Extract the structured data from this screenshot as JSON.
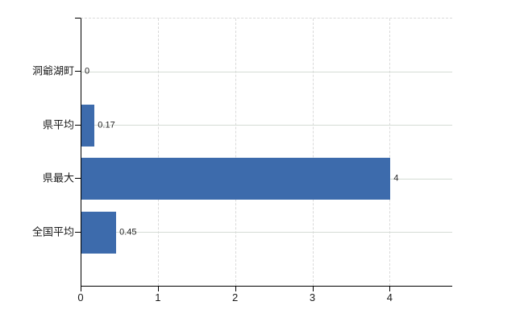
{
  "chart_data": {
    "type": "bar",
    "orientation": "horizontal",
    "title": "",
    "xlabel": "",
    "ylabel": "",
    "categories": [
      "洞爺湖町",
      "県平均",
      "県最大",
      "全国平均"
    ],
    "values": [
      0,
      0.17,
      4,
      0.45
    ],
    "value_labels": [
      "0",
      "0.17",
      "4",
      "0.45"
    ],
    "x_ticks": [
      "0",
      "1",
      "2",
      "3",
      "4"
    ],
    "x_tick_values": [
      0,
      1,
      2,
      3,
      4
    ],
    "xlim": [
      0,
      4.8
    ],
    "grid": true,
    "legend": false,
    "bar_color": "#3d6bac",
    "axis_color": "#000000",
    "hgrid_color": "#d5dcd5",
    "vgrid_color": "#d9d9d9",
    "text_color": "#1a1a1a",
    "background_color": "#ffffff"
  }
}
